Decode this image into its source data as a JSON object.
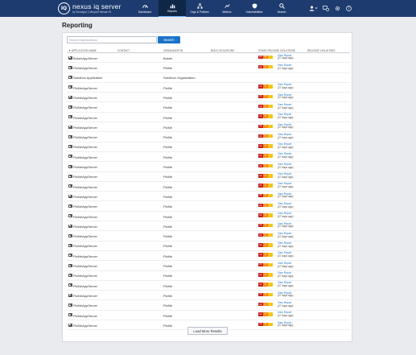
{
  "brand": {
    "name": "nexus iq server",
    "subtitle": "by Sonatype  |  Lifecycle release 91"
  },
  "nav": [
    {
      "id": "dashboard",
      "label": "Dashboard",
      "icon": "dashboard-icon",
      "active": false
    },
    {
      "id": "reports",
      "label": "Reports",
      "icon": "reports-icon",
      "active": true
    },
    {
      "id": "orgs",
      "label": "Orgs & Policies",
      "icon": "orgs-icon",
      "active": false
    },
    {
      "id": "metrics",
      "label": "Metrics",
      "icon": "metrics-icon",
      "active": false
    },
    {
      "id": "vulns",
      "label": "Vulnerabilities",
      "icon": "vulnerabilities-icon",
      "active": false
    },
    {
      "id": "search",
      "label": "Search",
      "icon": "search-icon",
      "active": false
    }
  ],
  "page": {
    "title": "Reporting"
  },
  "search": {
    "placeholder": "Search Applications",
    "button": "Search"
  },
  "table": {
    "columns": [
      "Application Name",
      "Contact",
      "Organization",
      "Build Violations",
      "Stage Release Violations",
      "Release Violations"
    ],
    "sort_indicator": "▼",
    "rows": [
      {
        "app": "BokehAppServer",
        "org": "Bokeh",
        "badges": [
          "124",
          "28",
          "7"
        ],
        "link": "View Report",
        "ago": "(27 days ago)"
      },
      {
        "app": "PicMeAppServer",
        "org": "PicMe",
        "badges": [
          "13",
          "8",
          "7"
        ],
        "link": "View Report",
        "ago": "(27 days ago)"
      },
      {
        "app": "Sandbox Application",
        "org": "Sandbox Organization",
        "badges": [],
        "link": "",
        "ago": ""
      },
      {
        "app": "PicMeAppServer",
        "org": "PicMe",
        "badges": [
          "13",
          "8",
          "7"
        ],
        "link": "View Report",
        "ago": "(27 days ago)"
      },
      {
        "app": "PicMeAppServer",
        "org": "PicMe",
        "badges": [
          "13",
          "8",
          "7"
        ],
        "link": "View Report",
        "ago": "(27 days ago)"
      },
      {
        "app": "PicMeAppServer",
        "org": "PicMe",
        "badges": [
          "13",
          "8",
          "7"
        ],
        "link": "View Report",
        "ago": "(27 days ago)"
      },
      {
        "app": "PicMeAppServer",
        "org": "PicMe",
        "badges": [
          "13",
          "8",
          "7"
        ],
        "link": "View Report",
        "ago": "(27 days ago)"
      },
      {
        "app": "PicMeAppServer",
        "org": "PicMe",
        "badges": [
          "13",
          "8",
          "7"
        ],
        "link": "View Report",
        "ago": "(27 days ago)"
      },
      {
        "app": "PicMeAppServer",
        "org": "PicMe",
        "badges": [
          "13",
          "8",
          "7"
        ],
        "link": "View Report",
        "ago": "(27 days ago)"
      },
      {
        "app": "PicMeAppServer",
        "org": "PicMe",
        "badges": [
          "13",
          "8",
          "7"
        ],
        "link": "View Report",
        "ago": "(27 days ago)"
      },
      {
        "app": "PicMeAppServer",
        "org": "PicMe",
        "badges": [
          "13",
          "8",
          "7"
        ],
        "link": "View Report",
        "ago": "(27 days ago)"
      },
      {
        "app": "PicMeAppServer",
        "org": "PicMe",
        "badges": [
          "13",
          "8",
          "7"
        ],
        "link": "View Report",
        "ago": "(27 days ago)"
      },
      {
        "app": "PicMeAppServer",
        "org": "PicMe",
        "badges": [
          "13",
          "8",
          "7"
        ],
        "link": "View Report",
        "ago": "(27 days ago)"
      },
      {
        "app": "PicMeAppServer",
        "org": "PicMe",
        "badges": [
          "13",
          "8",
          "7"
        ],
        "link": "View Report",
        "ago": "(27 days ago)"
      },
      {
        "app": "PicMeAppServer",
        "org": "PicMe",
        "badges": [
          "13",
          "8",
          "7"
        ],
        "link": "View Report",
        "ago": "(27 days ago)"
      },
      {
        "app": "PicMeAppServer",
        "org": "PicMe",
        "badges": [
          "13",
          "8",
          "7"
        ],
        "link": "View Report",
        "ago": "(27 days ago)"
      },
      {
        "app": "PicMeAppServer",
        "org": "PicMe",
        "badges": [
          "13",
          "8",
          "7"
        ],
        "link": "View Report",
        "ago": "(27 days ago)"
      },
      {
        "app": "PicMeAppServer",
        "org": "PicMe",
        "badges": [
          "13",
          "8",
          "7"
        ],
        "link": "View Report",
        "ago": "(27 days ago)"
      },
      {
        "app": "PicMeAppServer",
        "org": "PicMe",
        "badges": [
          "13",
          "8",
          "7"
        ],
        "link": "View Report",
        "ago": "(27 days ago)"
      },
      {
        "app": "PicMeAppServer",
        "org": "PicMe",
        "badges": [
          "13",
          "8",
          "7"
        ],
        "link": "View Report",
        "ago": "(27 days ago)"
      },
      {
        "app": "PicMeAppServer",
        "org": "PicMe",
        "badges": [
          "13",
          "8",
          "7"
        ],
        "link": "View Report",
        "ago": "(27 days ago)"
      },
      {
        "app": "PicMeAppServer",
        "org": "PicMe",
        "badges": [
          "13",
          "8",
          "7"
        ],
        "link": "View Report",
        "ago": "(27 days ago)"
      },
      {
        "app": "PicMeAppServer",
        "org": "PicMe",
        "badges": [
          "13",
          "8",
          "7"
        ],
        "link": "View Report",
        "ago": "(27 days ago)"
      },
      {
        "app": "PicMeAppServer",
        "org": "PicMe",
        "badges": [
          "13",
          "8",
          "7"
        ],
        "link": "View Report",
        "ago": "(27 days ago)"
      },
      {
        "app": "PicMeAppServer",
        "org": "PicMe",
        "badges": [
          "13",
          "8",
          "7"
        ],
        "link": "View Report",
        "ago": "(27 days ago)"
      },
      {
        "app": "PicMeAppServer",
        "org": "PicMe",
        "badges": [
          "13",
          "8",
          "7"
        ],
        "link": "View Report",
        "ago": "(27 days ago)"
      },
      {
        "app": "PicMeAppServer",
        "org": "PicMe",
        "badges": [
          "13",
          "8",
          "7"
        ],
        "link": "View Report",
        "ago": "(27 days ago)"
      },
      {
        "app": "PicMeAppServer",
        "org": "PicMe",
        "badges": [
          "13",
          "8",
          "7"
        ],
        "link": "View Report",
        "ago": "(27 days ago)"
      }
    ]
  },
  "load_more": "Load More Results",
  "header_icons": [
    "user-icon",
    "chevron-down-icon",
    "status-icon",
    "gear-icon",
    "help-icon"
  ],
  "colors": {
    "header": "#1d3b6e",
    "accent": "#1a74c8",
    "critical": "#c8201e",
    "severe": "#f28a16",
    "moderate": "#f5c10e"
  }
}
